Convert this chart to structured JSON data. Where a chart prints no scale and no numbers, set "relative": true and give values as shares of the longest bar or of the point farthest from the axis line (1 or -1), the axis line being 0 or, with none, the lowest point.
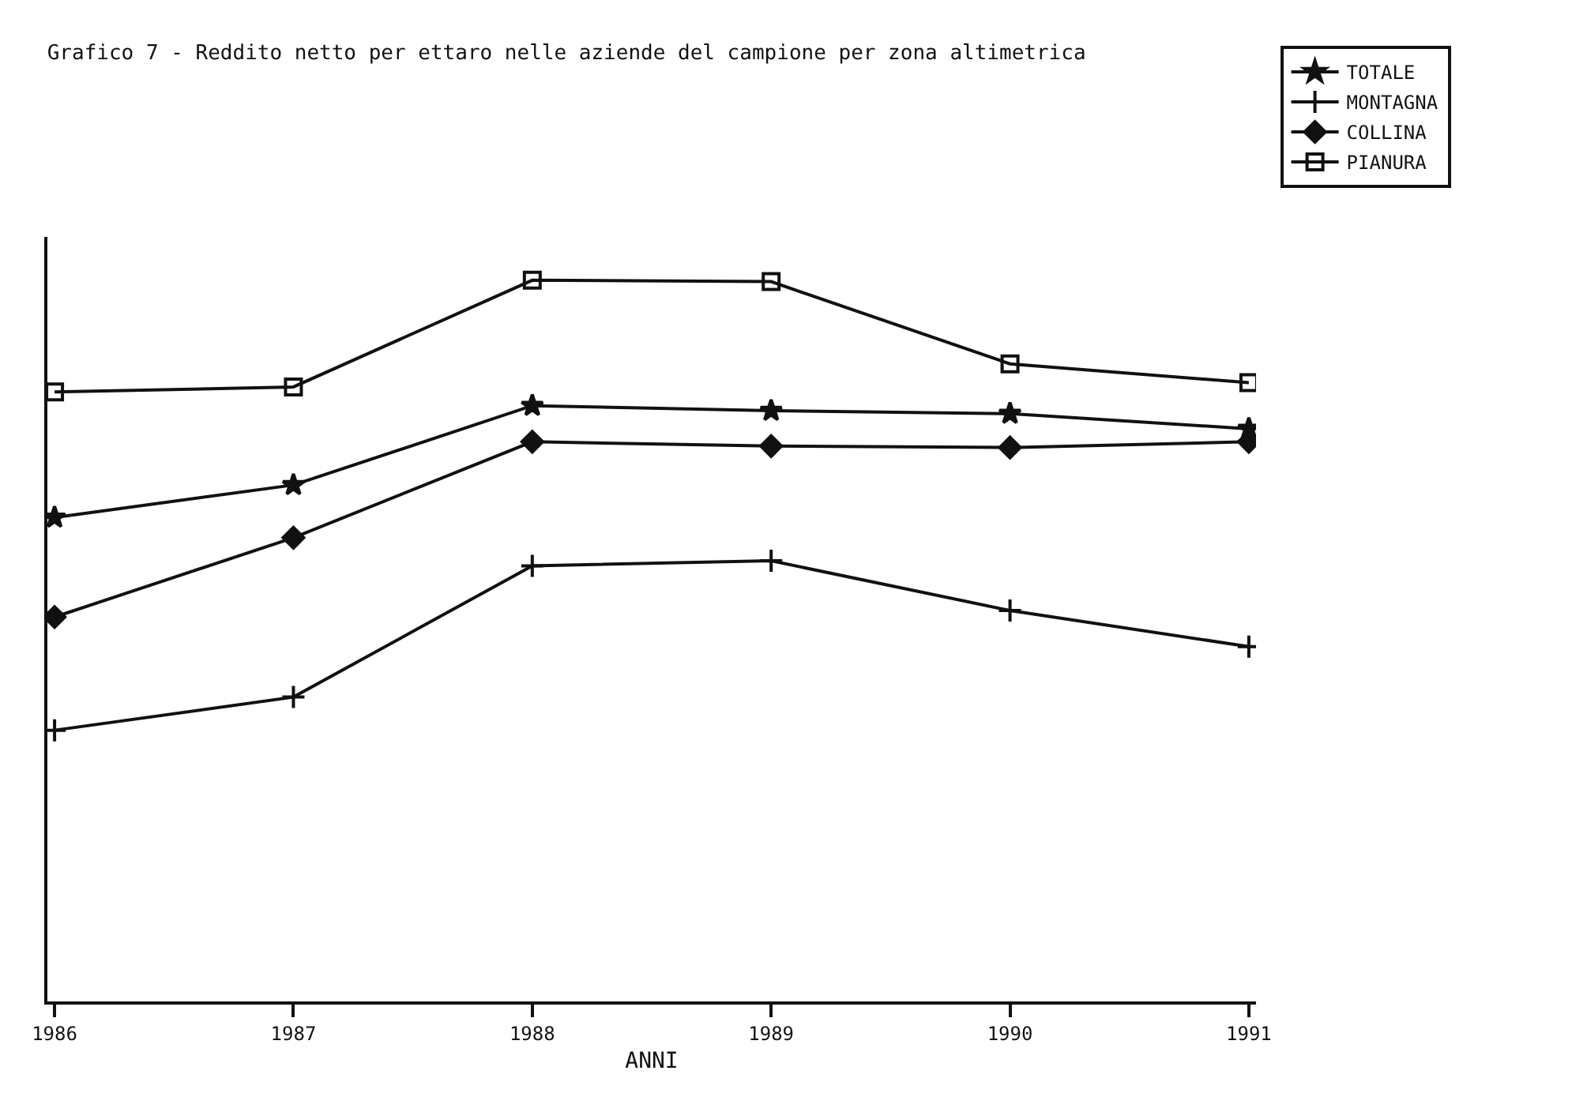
{
  "chart_data": {
    "type": "line",
    "title": "Grafico 7 - Reddito netto per ettaro nelle aziende del campione per zona altimetrica",
    "xlabel": "ANNI",
    "categories": [
      "1986",
      "1987",
      "1988",
      "1989",
      "1990",
      "1991"
    ],
    "relative": true,
    "legend": "top right",
    "grid": false,
    "line_style": "solid",
    "series": [
      {
        "name": "TOTALE",
        "color": "#111111",
        "marker": "star",
        "values": [
          0.671,
          0.716,
          0.826,
          0.819,
          0.815,
          0.794
        ]
      },
      {
        "name": "MONTAGNA",
        "color": "#111111",
        "marker": "cross",
        "values": [
          0.376,
          0.422,
          0.604,
          0.611,
          0.542,
          0.492
        ]
      },
      {
        "name": "COLLINA",
        "color": "#111111",
        "marker": "diamond",
        "values": [
          0.533,
          0.643,
          0.776,
          0.77,
          0.768,
          0.776
        ]
      },
      {
        "name": "PIANURA",
        "color": "#111111",
        "marker": "square",
        "values": [
          0.845,
          0.852,
          1.0,
          0.998,
          0.884,
          0.858
        ]
      }
    ]
  }
}
